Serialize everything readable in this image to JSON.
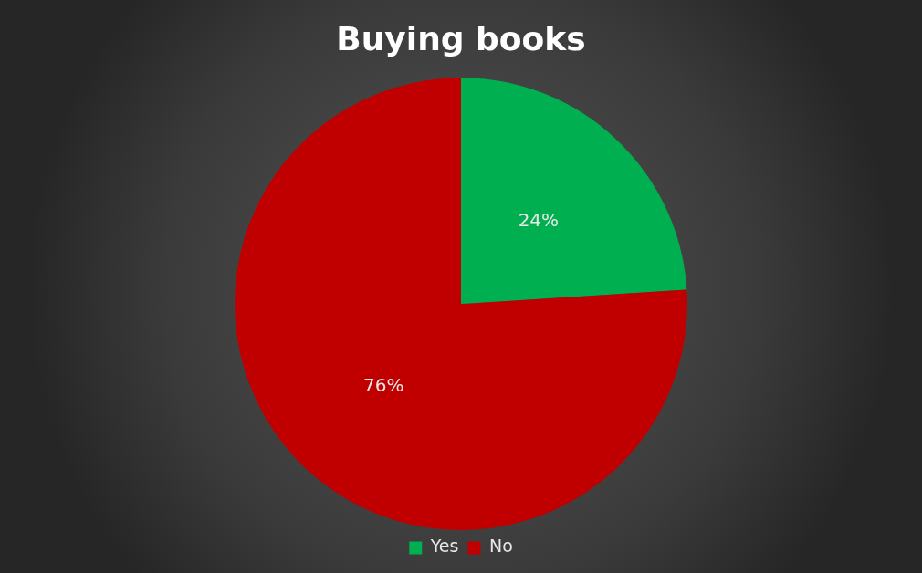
{
  "chart_data": {
    "type": "pie",
    "title": "Buying books",
    "categories": [
      "Yes",
      "No"
    ],
    "values": [
      24,
      76
    ],
    "colors": [
      "#00b050",
      "#c00000"
    ],
    "value_labels": [
      "24%",
      "76%"
    ],
    "legend": "bottom"
  }
}
